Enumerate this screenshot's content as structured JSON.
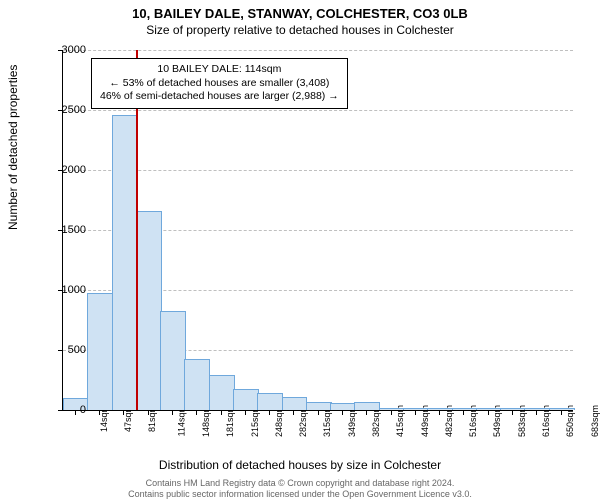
{
  "chart": {
    "type": "histogram",
    "title_line1": "10, BAILEY DALE, STANWAY, COLCHESTER, CO3 0LB",
    "title_line2": "Size of property relative to detached houses in Colchester",
    "ylabel": "Number of detached properties",
    "xlabel": "Distribution of detached houses by size in Colchester",
    "background_color": "#ffffff",
    "grid_color": "#bfbfbf",
    "bar_fill": "#cfe2f3",
    "bar_border": "#6fa8dc",
    "marker_color": "#c00000",
    "ylim": [
      0,
      3000
    ],
    "yticks": [
      0,
      500,
      1000,
      1500,
      2000,
      2500,
      3000
    ],
    "xtick_labels": [
      "14sqm",
      "47sqm",
      "81sqm",
      "114sqm",
      "148sqm",
      "181sqm",
      "215sqm",
      "248sqm",
      "282sqm",
      "315sqm",
      "349sqm",
      "382sqm",
      "415sqm",
      "449sqm",
      "482sqm",
      "516sqm",
      "549sqm",
      "583sqm",
      "616sqm",
      "650sqm",
      "683sqm"
    ],
    "values": [
      90,
      970,
      2450,
      1650,
      820,
      420,
      280,
      170,
      130,
      100,
      60,
      50,
      60,
      10,
      5,
      5,
      5,
      5,
      5,
      5,
      5
    ],
    "marker_position_sqm": 114,
    "marker_index": 3,
    "annotation": {
      "line1": "10 BAILEY DALE: 114sqm",
      "line2": "← 53% of detached houses are smaller (3,408)",
      "line3": "46% of semi-detached houses are larger (2,988) →"
    },
    "footer_line1": "Contains HM Land Registry data © Crown copyright and database right 2024.",
    "footer_line2": "Contains public sector information licensed under the Open Government Licence v3.0.",
    "title_fontsize": 13,
    "subtitle_fontsize": 12,
    "axis_label_fontsize": 12,
    "tick_fontsize": 11,
    "xtick_fontsize": 9,
    "footer_fontsize": 9
  }
}
